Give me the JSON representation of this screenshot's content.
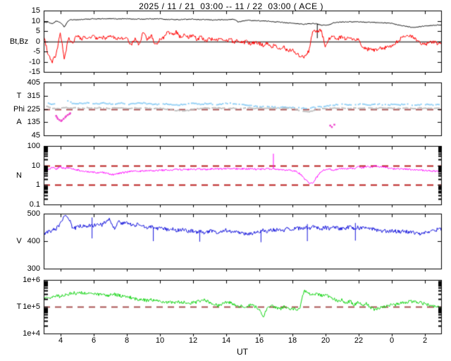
{
  "title": "2025 / 11 / 21  03:00 -- 11 / 22  03:00 ( ACE )",
  "x_axis": {
    "label": "UT",
    "start_hour": 3,
    "end_hour": 27,
    "tick_hours": [
      4,
      6,
      8,
      10,
      12,
      14,
      16,
      18,
      20,
      22,
      24,
      26
    ],
    "tick_labels": [
      "4",
      "6",
      "8",
      "10",
      "12",
      "14",
      "16",
      "18",
      "20",
      "22",
      "0",
      "2"
    ]
  },
  "chart_data": [
    {
      "name": "magnetic-field",
      "type": "line",
      "scale": "linear",
      "ylim": [
        -15,
        15
      ],
      "yticks": {
        "values": [
          15,
          10,
          5,
          0,
          -5,
          -10,
          -15
        ],
        "labels": [
          "15",
          "10",
          "5",
          "0",
          "-5",
          "-10",
          "-15"
        ]
      },
      "ylabel_items": [
        {
          "text": "Bt,Bz",
          "at": 0
        }
      ],
      "ref_lines": [
        {
          "y": 0,
          "color": "#4d4d4d",
          "dash": false,
          "width": 1.6
        }
      ],
      "log_minor_ticks": false,
      "series": [
        {
          "name": "Bt",
          "color": "#000000",
          "mode": "line",
          "x_start": 3,
          "x_step": 0.25,
          "jitter": 0.18,
          "values": [
            9,
            9.5,
            8.5,
            9.8,
            9.2,
            7,
            10.2,
            10.6,
            10.5,
            10.6,
            10.8,
            10.7,
            11,
            10.9,
            11,
            10.9,
            11,
            11,
            10.9,
            11,
            11,
            10.9,
            10.8,
            10.9,
            10.8,
            10.9,
            11,
            10.9,
            11,
            10.8,
            10.6,
            10.7,
            10.5,
            10.6,
            10.8,
            10.7,
            10.8,
            10.6,
            10.5,
            10.6,
            10.5,
            10.4,
            10.5,
            10.5,
            10.5,
            10.6,
            10.8,
            9.4,
            9.8,
            10.3,
            10.2,
            10.1,
            10,
            9.9,
            9.8,
            9.7,
            9.5,
            9.4,
            9.2,
            9,
            8.8,
            8.6,
            8.5,
            8.3,
            8.5,
            8.7,
            8.5,
            7.8,
            7.9,
            8,
            9,
            9.3,
            9.5,
            9.5,
            9.5,
            9.5,
            9.5,
            9.4,
            9.3,
            9.3,
            9.2,
            9.1,
            9,
            8.9,
            8.8,
            8.2,
            7.8,
            7.5,
            7.2,
            6.8,
            7,
            7.2,
            7.5,
            7.6,
            7.8,
            7.9,
            8
          ],
          "spikes": [
            [
              19.5,
              1.5,
              8.5
            ]
          ]
        },
        {
          "name": "Bz",
          "color": "#ff0000",
          "mode": "line",
          "x_start": 3,
          "x_step": 0.25,
          "jitter": 0.9,
          "values": [
            3,
            -6,
            -10,
            -7,
            4,
            -8.5,
            2,
            -1,
            3,
            1,
            2.5,
            1.5,
            2.5,
            1,
            2,
            1.5,
            2.5,
            2,
            1,
            1.5,
            2,
            -2,
            1,
            -1.5,
            4,
            1,
            3,
            -2,
            0.5,
            2,
            5,
            3,
            4.5,
            2,
            3.5,
            2,
            3,
            1,
            2,
            0,
            1.5,
            0.5,
            1,
            0.5,
            0,
            1,
            -0.5,
            0.5,
            -1,
            0,
            -1.5,
            -0.5,
            -1,
            -2,
            -1,
            -3,
            -1.5,
            -4,
            -2.5,
            -5,
            -4,
            -6,
            -7.5,
            -7.8,
            -5,
            5,
            4.5,
            5.5,
            -2,
            1.5,
            2,
            1,
            2.5,
            1,
            2,
            0.5,
            1.5,
            -3,
            -4,
            -3.5,
            -4.5,
            -3,
            -4,
            -2,
            -3,
            -1,
            1,
            2,
            3,
            2,
            1,
            -1,
            -1.5,
            -1,
            -0.5,
            -1,
            -1
          ],
          "spikes": []
        }
      ]
    },
    {
      "name": "angles",
      "type": "scatter",
      "scale": "linear",
      "ylim": [
        45,
        405
      ],
      "yticks": {
        "values": [
          405,
          315,
          225,
          135,
          45
        ],
        "labels": [
          "405",
          "315",
          "225",
          "135",
          "45"
        ]
      },
      "ylabel_items": [
        {
          "text": "T",
          "at": 315
        },
        {
          "text": "Phi",
          "at": 225
        },
        {
          "text": "A",
          "at": 135
        }
      ],
      "ref_lines": [
        {
          "y": 225,
          "color": "#aa5555",
          "dash": true,
          "width": 2
        }
      ],
      "log_minor_ticks": false,
      "series": [
        {
          "name": "T-angle",
          "color": "#8ccdf5",
          "mode": "dots",
          "x_start": 3.2,
          "x_step": 0.25,
          "jitter": 3.5,
          "values": [
            265,
            260,
            256,
            null,
            null,
            282,
            266,
            260,
            262,
            265,
            268,
            263,
            259,
            262,
            265,
            261,
            258,
            262,
            264,
            260,
            257,
            260,
            263,
            266,
            262,
            258,
            255,
            258,
            261,
            257,
            253,
            250,
            252,
            256,
            260,
            263,
            260,
            257,
            260,
            262,
            258,
            255,
            258,
            261,
            263,
            259,
            256,
            253,
            250,
            247,
            245,
            243,
            241,
            240,
            238,
            237,
            236,
            235,
            234,
            233,
            232,
            231,
            230,
            231,
            233,
            236,
            240,
            244,
            248,
            251,
            254,
            256,
            253,
            250,
            253,
            256,
            258,
            255,
            252,
            255,
            257,
            254,
            251,
            254,
            256,
            253,
            255,
            257,
            254,
            251,
            253,
            255,
            257,
            254,
            252,
            254
          ],
          "spikes": []
        },
        {
          "name": "Phi-angle",
          "color": "#bbbbbb",
          "mode": "dots",
          "x_start": 3.2,
          "x_step": 0.25,
          "jitter": 3,
          "values": [
            240,
            233,
            228,
            226,
            231,
            234,
            229,
            232,
            229,
            231,
            233,
            229,
            231,
            233,
            230,
            228,
            231,
            229,
            232,
            230,
            228,
            230,
            232,
            229,
            231,
            229,
            227,
            229,
            227,
            224,
            220,
            216,
            213,
            212,
            215,
            219,
            224,
            228,
            230,
            228,
            230,
            232,
            229,
            231,
            229,
            231,
            230,
            228,
            230,
            232,
            229,
            231,
            229,
            230,
            228,
            230,
            231,
            229,
            230,
            228,
            224,
            216,
            209,
            206,
            210,
            217,
            223,
            227,
            229,
            231,
            229,
            231,
            230,
            228,
            230,
            231,
            229,
            231,
            230,
            228,
            230,
            231,
            229,
            230,
            231,
            229,
            231,
            230,
            228,
            230,
            231,
            229,
            230,
            231,
            229,
            230
          ],
          "spikes": []
        },
        {
          "name": "A-angle",
          "color": "#ee44cc",
          "mode": "points",
          "points": [
            [
              3.75,
              178
            ],
            [
              3.8,
              168
            ],
            [
              3.85,
              158
            ],
            [
              3.95,
              150
            ],
            [
              4.05,
              143
            ],
            [
              4.1,
              148
            ],
            [
              4.2,
              158
            ],
            [
              4.3,
              168
            ],
            [
              4.35,
              176
            ],
            [
              4.45,
              184
            ],
            [
              4.55,
              190
            ],
            [
              4.6,
              196
            ],
            [
              20.3,
              112
            ],
            [
              20.4,
              102
            ],
            [
              20.55,
              118
            ]
          ]
        }
      ]
    },
    {
      "name": "density",
      "type": "line",
      "scale": "log",
      "ylim": [
        0.1,
        100
      ],
      "yticks": {
        "values": [
          100,
          10,
          1,
          0.1
        ],
        "labels": [
          "100",
          "10",
          "1",
          "0.1"
        ]
      },
      "ylabel_items": [
        {
          "text": "N",
          "at": 3.16
        }
      ],
      "ref_lines": [
        {
          "y": 10,
          "color": "#bb2020",
          "dash": true,
          "width": 2
        },
        {
          "y": 1,
          "color": "#bb2020",
          "dash": true,
          "width": 2
        }
      ],
      "log_minor_ticks": true,
      "series": [
        {
          "name": "N",
          "color": "#ff00ff",
          "mode": "line",
          "x_start": 3,
          "x_step": 0.25,
          "jitter": 0.045,
          "values": [
            7,
            6,
            8,
            6.5,
            8.5,
            7,
            7.5,
            6.5,
            6,
            5.5,
            5,
            4.8,
            4.5,
            4.2,
            4.5,
            4,
            3.6,
            3.4,
            3.8,
            4.2,
            4.5,
            5,
            5.2,
            5,
            5.2,
            5.5,
            5.3,
            5.5,
            5.6,
            5.8,
            5.5,
            5.8,
            6,
            6.2,
            6,
            6.2,
            6.4,
            6.2,
            6.5,
            6.3,
            6.5,
            6.6,
            6.4,
            6.6,
            6.8,
            7,
            6.8,
            6.6,
            6.8,
            6.5,
            6.7,
            6.4,
            6.6,
            6.3,
            6.5,
            6.7,
            6.4,
            6.2,
            6,
            5.8,
            5.5,
            5,
            3.5,
            2,
            1.3,
            1.2,
            2.5,
            5,
            6,
            6.5,
            6,
            6.5,
            7,
            6.5,
            7.5,
            7,
            8.5,
            7.5,
            9,
            8,
            9.5,
            8.5,
            9,
            7.5,
            7,
            6.5,
            6.8,
            6.5,
            6.4,
            6.2,
            6,
            5.8,
            5.5,
            5.3,
            5.2,
            5,
            5,
            4.8,
            4.8,
            5
          ],
          "spikes": [
            [
              16.85,
              7,
              40
            ]
          ]
        }
      ]
    },
    {
      "name": "speed",
      "type": "line",
      "scale": "linear",
      "ylim": [
        300,
        500
      ],
      "yticks": {
        "values": [
          500,
          400,
          300
        ],
        "labels": [
          "500",
          "400",
          "300"
        ]
      },
      "ylabel_items": [
        {
          "text": "V",
          "at": 400
        }
      ],
      "ref_lines": [],
      "log_minor_ticks": false,
      "series": [
        {
          "name": "V",
          "color": "#1414dd",
          "mode": "line",
          "x_start": 3,
          "x_step": 0.25,
          "jitter": 7,
          "values": [
            425,
            432,
            438,
            445,
            460,
            490,
            487,
            445,
            450,
            455,
            452,
            458,
            455,
            462,
            458,
            470,
            478,
            445,
            470,
            465,
            468,
            462,
            458,
            462,
            455,
            450,
            452,
            448,
            445,
            448,
            442,
            445,
            440,
            438,
            442,
            436,
            438,
            432,
            436,
            430,
            435,
            438,
            432,
            436,
            440,
            435,
            438,
            432,
            428,
            425,
            428,
            430,
            435,
            440,
            436,
            442,
            438,
            444,
            440,
            445,
            442,
            448,
            444,
            450,
            446,
            452,
            448,
            445,
            450,
            446,
            452,
            448,
            444,
            448,
            452,
            446,
            450,
            446,
            450,
            446,
            442,
            440,
            438,
            436,
            438,
            436,
            434,
            436,
            434,
            432,
            430,
            428,
            430,
            434,
            438,
            442,
            445
          ],
          "spikes": [
            [
              5.9,
              410,
              486
            ],
            [
              9.6,
              400,
              452
            ],
            [
              12.4,
              398,
              436
            ],
            [
              16.1,
              396,
              440
            ],
            [
              18.9,
              400,
              462
            ],
            [
              21.8,
              402,
              466
            ]
          ]
        }
      ]
    },
    {
      "name": "temperature",
      "type": "line",
      "scale": "log",
      "ylim": [
        10000.0,
        1000000.0
      ],
      "yticks": {
        "values": [
          1000000.0,
          100000.0,
          10000.0
        ],
        "labels": [
          "1e+6",
          "1e+5",
          "1e+4"
        ]
      },
      "ylabel_items": [
        {
          "text": "T",
          "at": 100000.0
        }
      ],
      "ref_lines": [
        {
          "y": 100000.0,
          "color": "#aa5555",
          "dash": true,
          "width": 2
        }
      ],
      "log_minor_ticks": true,
      "series": [
        {
          "name": "T",
          "color": "#12d512",
          "mode": "line",
          "x_start": 3,
          "x_step": 0.25,
          "jitter": 0.06,
          "values": [
            200000.0,
            230000.0,
            210000.0,
            260000.0,
            240000.0,
            280000.0,
            300000.0,
            330000.0,
            310000.0,
            340000.0,
            320000.0,
            300000.0,
            310000.0,
            290000.0,
            280000.0,
            260000.0,
            270000.0,
            290000.0,
            270000.0,
            250000.0,
            240000.0,
            220000.0,
            200000.0,
            190000.0,
            180000.0,
            170000.0,
            180000.0,
            170000.0,
            160000.0,
            155000.0,
            150000.0,
            145000.0,
            150000.0,
            140000.0,
            145000.0,
            135000.0,
            140000.0,
            150000.0,
            160000.0,
            180000.0,
            150000.0,
            130000.0,
            110000.0,
            120000.0,
            140000.0,
            150000.0,
            120000.0,
            100000.0,
            110000.0,
            90000.0,
            120000.0,
            100000.0,
            85000.0,
            35000.0,
            90000.0,
            110000.0,
            95000.0,
            80000.0,
            100000.0,
            90000.0,
            85000.0,
            80000.0,
            90000.0,
            400000.0,
            320000.0,
            280000.0,
            300000.0,
            260000.0,
            280000.0,
            240000.0,
            200000.0,
            160000.0,
            180000.0,
            140000.0,
            160000.0,
            120000.0,
            150000.0,
            110000.0,
            130000.0,
            90000.0,
            80000.0,
            90000.0,
            100000.0,
            110000.0,
            115000.0,
            120000.0,
            130000.0,
            140000.0,
            150000.0,
            155000.0,
            150000.0,
            140000.0,
            130000.0,
            120000.0,
            105000.0,
            95000.0,
            100000.0
          ],
          "spikes": []
        }
      ]
    }
  ]
}
